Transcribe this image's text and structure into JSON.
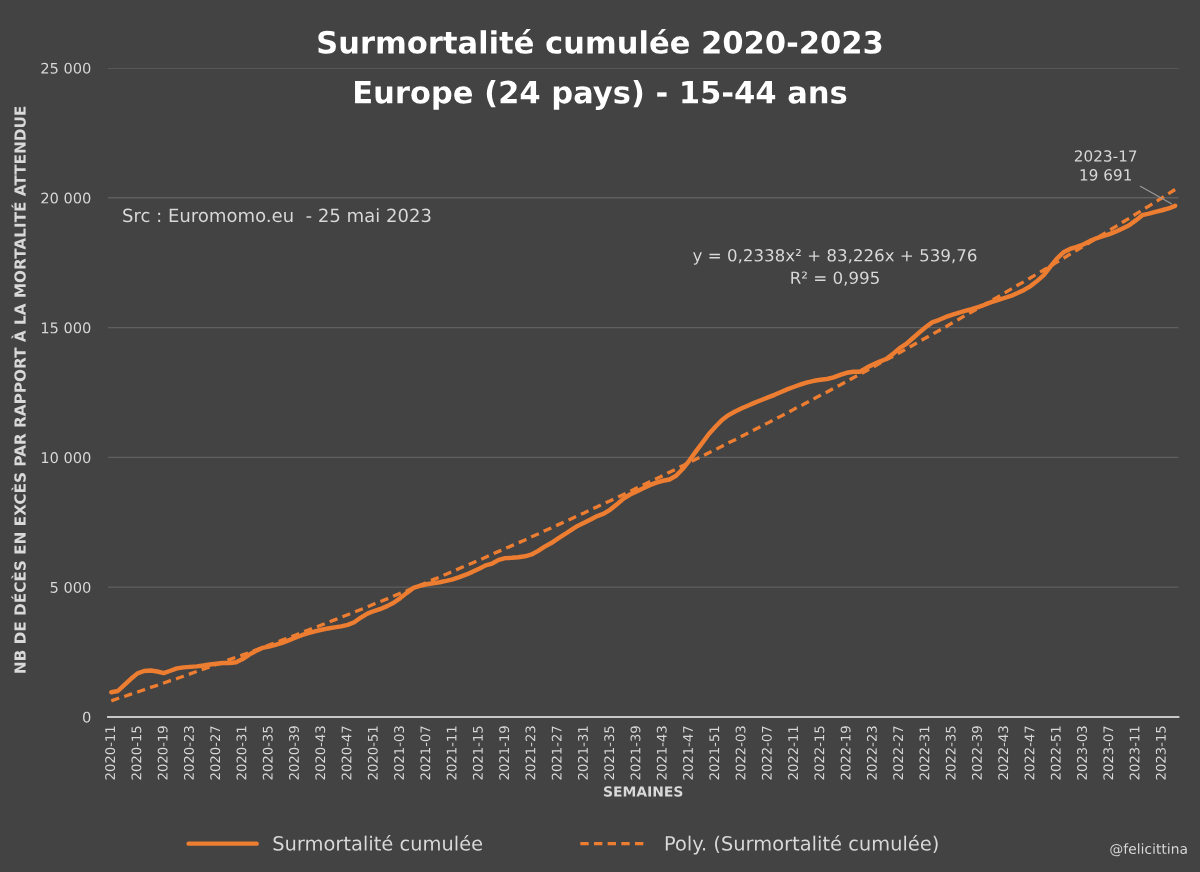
{
  "chart_data": {
    "type": "line",
    "title": "Surmortalité cumulée 2020-2023",
    "subtitle": "Europe (24 pays) - 15-44 ans",
    "xlabel": "SEMAINES",
    "ylabel": "NB DE DÉCÈS EN EXCÈS PAR RAPPORT À LA MORTALITÉ ATTENDUE",
    "annotations": [
      "Src : Euromomo.eu  - 25 mai 2023",
      "y = 0,2338x² + 83,226x + 539,76\nR² = 0,995",
      "@felicittina"
    ],
    "categories": [
      "2020-11",
      null,
      null,
      null,
      "2020-15",
      null,
      null,
      null,
      "2020-19",
      null,
      null,
      null,
      "2020-23",
      null,
      null,
      null,
      "2020-27",
      null,
      null,
      null,
      "2020-31",
      null,
      null,
      null,
      "2020-35",
      null,
      null,
      null,
      "2020-39",
      null,
      null,
      null,
      "2020-43",
      null,
      null,
      null,
      "2020-47",
      null,
      null,
      null,
      "2020-51",
      null,
      null,
      null,
      "2021-03",
      null,
      null,
      null,
      "2021-07",
      null,
      null,
      null,
      "2021-11",
      null,
      null,
      null,
      "2021-15",
      null,
      null,
      null,
      "2021-19",
      null,
      null,
      null,
      "2021-23",
      null,
      null,
      null,
      "2021-27",
      null,
      null,
      null,
      "2021-31",
      null,
      null,
      null,
      "2021-35",
      null,
      null,
      null,
      "2021-39",
      null,
      null,
      null,
      "2021-43",
      null,
      null,
      null,
      "2021-47",
      null,
      null,
      null,
      "2021-51",
      null,
      null,
      null,
      "2022-03",
      null,
      null,
      null,
      "2022-07",
      null,
      null,
      null,
      "2022-11",
      null,
      null,
      null,
      "2022-15",
      null,
      null,
      null,
      "2022-19",
      null,
      null,
      null,
      "2022-23",
      null,
      null,
      null,
      "2022-27",
      null,
      null,
      null,
      "2022-31",
      null,
      null,
      null,
      "2022-35",
      null,
      null,
      null,
      "2022-39",
      null,
      null,
      null,
      "2022-43",
      null,
      null,
      null,
      "2022-47",
      null,
      null,
      null,
      "2022-51",
      null,
      null,
      null,
      "2023-03",
      null,
      null,
      null,
      "2023-07",
      null,
      null,
      null,
      "2023-11",
      null,
      null,
      null,
      "2023-15",
      null,
      null
    ],
    "series": [
      {
        "name": "Surmortalité cumulée",
        "color": "#ed7d31",
        "line_style": "solid",
        "values": [
          950,
          1000,
          1240,
          1470,
          1680,
          1770,
          1790,
          1750,
          1690,
          1780,
          1870,
          1910,
          1930,
          1950,
          1980,
          2020,
          2050,
          2080,
          2080,
          2110,
          2230,
          2400,
          2540,
          2660,
          2710,
          2780,
          2850,
          2950,
          3050,
          3150,
          3230,
          3300,
          3360,
          3410,
          3450,
          3490,
          3550,
          3650,
          3830,
          3980,
          4080,
          4160,
          4270,
          4400,
          4580,
          4780,
          4970,
          5050,
          5110,
          5150,
          5190,
          5240,
          5300,
          5390,
          5480,
          5590,
          5710,
          5840,
          5910,
          6050,
          6120,
          6130,
          6150,
          6190,
          6260,
          6400,
          6560,
          6700,
          6870,
          7030,
          7200,
          7360,
          7480,
          7610,
          7740,
          7830,
          7990,
          8190,
          8410,
          8570,
          8690,
          8810,
          8930,
          9030,
          9100,
          9150,
          9290,
          9550,
          9870,
          10220,
          10560,
          10900,
          11180,
          11440,
          11630,
          11770,
          11890,
          12000,
          12110,
          12210,
          12310,
          12410,
          12520,
          12630,
          12720,
          12810,
          12890,
          12950,
          12990,
          13020,
          13080,
          13180,
          13260,
          13300,
          13300,
          13450,
          13580,
          13690,
          13790,
          13980,
          14200,
          14360,
          14580,
          14800,
          15010,
          15200,
          15290,
          15400,
          15490,
          15570,
          15640,
          15710,
          15790,
          15880,
          15980,
          16060,
          16140,
          16220,
          16330,
          16450,
          16600,
          16800,
          17020,
          17350,
          17660,
          17900,
          18030,
          18110,
          18200,
          18330,
          18440,
          18520,
          18600,
          18700,
          18820,
          18940,
          19130,
          19330,
          19390,
          19460,
          19520,
          19590,
          19691
        ],
        "value_labels": [
          null,
          null,
          null,
          null,
          null,
          null,
          null,
          null,
          null,
          null,
          null,
          null,
          null,
          null,
          null,
          null,
          null,
          null,
          null,
          null,
          null,
          null,
          null,
          null,
          null,
          null,
          null,
          null,
          null,
          null,
          null,
          null,
          null,
          null,
          null,
          null,
          null,
          null,
          null,
          null,
          null,
          null,
          null,
          null,
          null,
          null,
          null,
          null,
          null,
          null,
          null,
          null,
          null,
          null,
          null,
          null,
          null,
          null,
          null,
          null,
          null,
          null,
          null,
          null,
          null,
          null,
          null,
          null,
          null,
          null,
          null,
          null,
          null,
          null,
          null,
          null,
          null,
          null,
          null,
          null,
          null,
          null,
          null,
          null,
          null,
          null,
          null,
          null,
          null,
          null,
          null,
          null,
          null,
          null,
          null,
          null,
          null,
          null,
          null,
          null,
          null,
          null,
          null,
          null,
          null,
          null,
          null,
          null,
          null,
          null,
          null,
          null,
          null,
          null,
          null,
          null,
          null,
          null,
          null,
          null,
          null,
          null,
          null,
          null,
          null,
          null,
          null,
          null,
          null,
          null,
          null,
          null,
          null,
          null,
          null,
          null,
          null,
          null,
          null,
          null,
          null,
          null,
          null,
          null,
          null,
          null,
          null,
          null,
          null,
          null,
          null,
          null,
          null,
          null,
          null,
          null,
          null,
          null,
          null,
          null,
          null,
          null,
          "2023-17\n19 691"
        ]
      },
      {
        "name": "Poly. (Surmortalité cumulée)",
        "type": "line",
        "color": "#ed7d31",
        "line_style": "dashed",
        "values": [
          620,
          710,
          790,
          880,
          960,
          1050,
          1140,
          1220,
          1310,
          1400,
          1480,
          1570,
          1660,
          1750,
          1840,
          1930,
          2020,
          2110,
          2210,
          2300,
          2390,
          2480,
          2580,
          2670,
          2770,
          2860,
          2960,
          3050,
          3150,
          3250,
          3350,
          3440,
          3540,
          3640,
          3740,
          3840,
          3940,
          4040,
          4140,
          4240,
          4350,
          4450,
          4550,
          4660,
          4760,
          4860,
          4970,
          5070,
          5180,
          5290,
          5390,
          5500,
          5610,
          5720,
          5830,
          5930,
          6040,
          6150,
          6270,
          6380,
          6490,
          6600,
          6710,
          6820,
          6940,
          7050,
          7170,
          7280,
          7400,
          7510,
          7630,
          7750,
          7860,
          7980,
          8100,
          8220,
          8330,
          8450,
          8570,
          8690,
          8820,
          8940,
          9060,
          9180,
          9300,
          9430,
          9550,
          9680,
          9800,
          9930,
          10050,
          10180,
          10300,
          10430,
          10560,
          10680,
          10810,
          10940,
          11070,
          11200,
          11330,
          11460,
          11590,
          11720,
          11860,
          11990,
          12120,
          12260,
          12390,
          12520,
          12660,
          12790,
          12930,
          13070,
          13200,
          13340,
          13480,
          13620,
          13760,
          13890,
          14030,
          14170,
          14310,
          14460,
          14600,
          14740,
          14880,
          15020,
          15170,
          15310,
          15460,
          15600,
          15740,
          15890,
          16040,
          16180,
          16330,
          16480,
          16630,
          16770,
          16920,
          17070,
          17220,
          17370,
          17520,
          17670,
          17830,
          17980,
          18130,
          18280,
          18440,
          18590,
          18750,
          18900,
          19060,
          19210,
          19370,
          19530,
          19680,
          19840,
          20000,
          20160,
          20320
        ]
      }
    ],
    "ylim": [
      0,
      25000
    ],
    "yticks": [
      0,
      {
        "value": 5000,
        "label": "5 000"
      },
      {
        "value": 10000,
        "label": "10 000"
      },
      {
        "value": 15000,
        "label": "15 000"
      },
      {
        "value": 20000,
        "label": "20 000"
      },
      {
        "value": 25000,
        "label": "25 000"
      }
    ],
    "grid": "y",
    "legend": "bottom"
  }
}
